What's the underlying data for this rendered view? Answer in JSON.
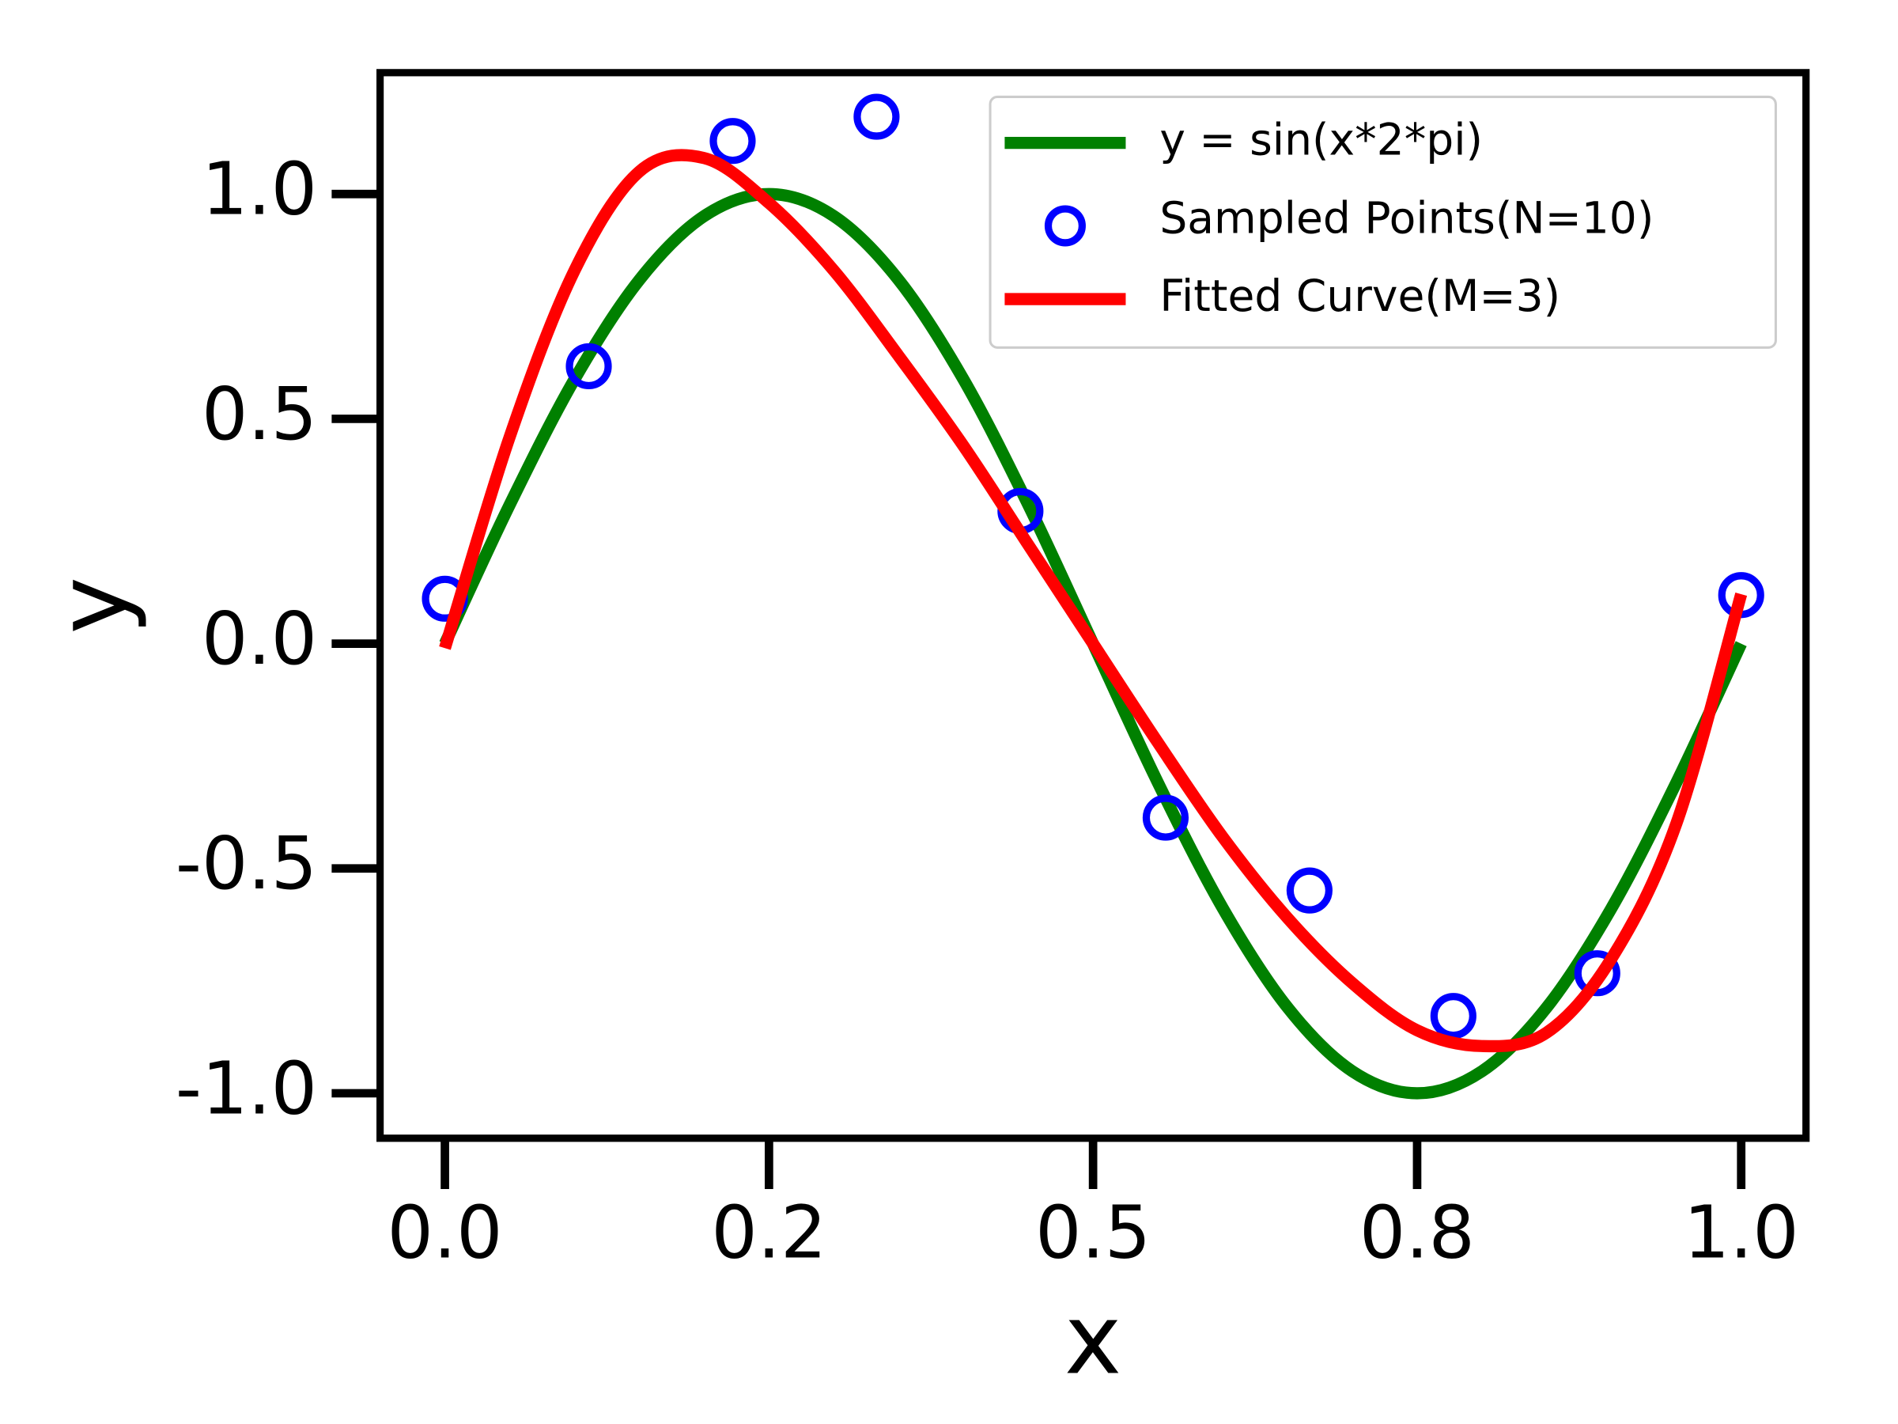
{
  "chart_data": {
    "type": "line",
    "xlabel": "x",
    "ylabel": "y",
    "xlim": [
      -0.05,
      1.05
    ],
    "ylim": [
      -1.1,
      1.27
    ],
    "xticks": [
      {
        "value": 0,
        "label": "0.0"
      },
      {
        "value": 0.25,
        "label": "0.2"
      },
      0.5,
      {
        "value": 0.75,
        "label": "0.8"
      },
      {
        "value": 1,
        "label": "1.0"
      }
    ],
    "yticks": [
      {
        "value": -1,
        "label": "-1.0"
      },
      -0.5,
      {
        "value": 0,
        "label": "0.0"
      },
      0.5,
      {
        "value": 1,
        "label": "1.0"
      }
    ],
    "legend": "upper right",
    "series": [
      {
        "name": "y = sin(x*2*pi)",
        "type": "line",
        "color": "#008000",
        "x": [
          0,
          0.05,
          0.1,
          0.15,
          0.2,
          0.25,
          0.3,
          0.35,
          0.4,
          0.45,
          0.5,
          0.55,
          0.6,
          0.65,
          0.7,
          0.75,
          0.8,
          0.85,
          0.9,
          0.95,
          1
        ],
        "values": [
          0,
          0.309,
          0.588,
          0.809,
          0.951,
          1,
          0.951,
          0.809,
          0.588,
          0.309,
          0,
          -0.309,
          -0.588,
          -0.809,
          -0.951,
          -1,
          -0.951,
          -0.809,
          -0.588,
          -0.309,
          0
        ]
      },
      {
        "name": "Sampled Points(N=10)",
        "type": "scatter",
        "color": "#0000ff",
        "x": [
          0,
          0.111,
          0.222,
          0.333,
          0.444,
          0.556,
          0.667,
          0.778,
          0.889,
          1
        ],
        "values": [
          0.1,
          0.617,
          1.118,
          1.172,
          0.295,
          -0.387,
          -0.549,
          -0.828,
          -0.733,
          0.108
        ]
      },
      {
        "name": "Fitted Curve(M=3)",
        "type": "line",
        "color": "#ff0000",
        "x": [
          0,
          0.05,
          0.1,
          0.15,
          0.2,
          0.25,
          0.3,
          0.35,
          0.4,
          0.45,
          0.5,
          0.55,
          0.6,
          0.65,
          0.7,
          0.75,
          0.8,
          0.85,
          0.9,
          0.95,
          1
        ],
        "values": [
          -0.01,
          0.46,
          0.83,
          1.05,
          1.08,
          0.98,
          0.83,
          0.64,
          0.44,
          0.22,
          0,
          -0.22,
          -0.43,
          -0.61,
          -0.755,
          -0.86,
          -0.895,
          -0.865,
          -0.7,
          -0.4,
          0.11
        ]
      }
    ]
  }
}
